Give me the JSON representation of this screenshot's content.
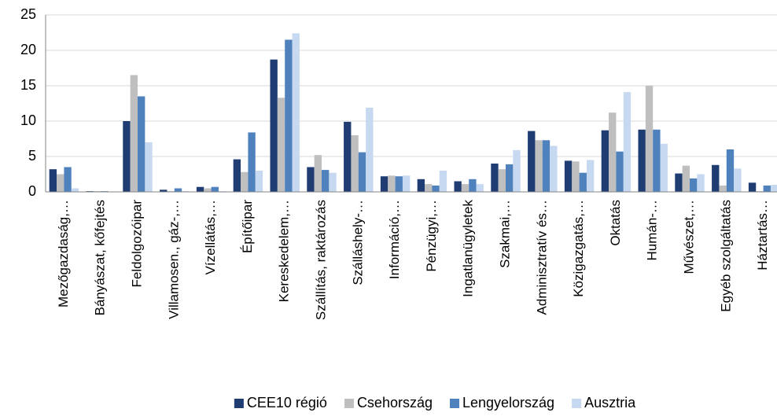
{
  "chart_data": {
    "type": "bar",
    "categories": [
      "Mezőgazdaság,…",
      "Bányászat, kőfejtés",
      "Feldolgozóipar",
      "Villamosen., gáz-,…",
      "Vízellátás,…",
      "Építőipar",
      "Kereskedelem,…",
      "Szállítás, raktározás",
      "Szálláshely-…",
      "Információ,…",
      "Pénzügyi,…",
      "Ingatlanügyletek",
      "Szakmai,…",
      "Adminisztratív és…",
      "Közigazgatás,…",
      "Oktatás",
      "Humán-…",
      "Művészet,…",
      "Egyéb szolgáltatás",
      "Háztartás…"
    ],
    "series": [
      {
        "name": "CEE10 régió",
        "color": "#1f3d73",
        "values": [
          3.2,
          0.1,
          10,
          0.3,
          0.7,
          4.6,
          18.7,
          3.5,
          9.9,
          2.2,
          1.8,
          1.5,
          4,
          8.6,
          4.4,
          8.7,
          8.8,
          2.6,
          3.8,
          1.3
        ]
      },
      {
        "name": "Csehország",
        "color": "#bfbfbf",
        "values": [
          2.5,
          0.1,
          16.5,
          0.1,
          0.5,
          2.8,
          13.3,
          5.2,
          8,
          2.3,
          1.1,
          1.1,
          3.2,
          7.3,
          4.3,
          11.2,
          15,
          3.7,
          0.9,
          0.1
        ]
      },
      {
        "name": "Lengyelország",
        "color": "#4f81bd",
        "values": [
          3.5,
          0.1,
          13.5,
          0.5,
          0.7,
          8.4,
          21.5,
          3.1,
          5.6,
          2.2,
          0.9,
          1.8,
          3.9,
          7.3,
          2.7,
          5.7,
          8.8,
          1.9,
          6,
          0.9
        ]
      },
      {
        "name": "Ausztria",
        "color": "#c6d9f1",
        "values": [
          0.5,
          0,
          7,
          0.1,
          0.1,
          3,
          22.4,
          2.7,
          11.9,
          2.3,
          3,
          1.1,
          5.9,
          6.5,
          4.5,
          14.1,
          6.8,
          2.5,
          3.3,
          1
        ]
      }
    ],
    "ylim": [
      0,
      25
    ],
    "yticks": [
      0,
      5,
      10,
      15,
      20,
      25
    ],
    "grid": true,
    "legend": "bottom"
  }
}
